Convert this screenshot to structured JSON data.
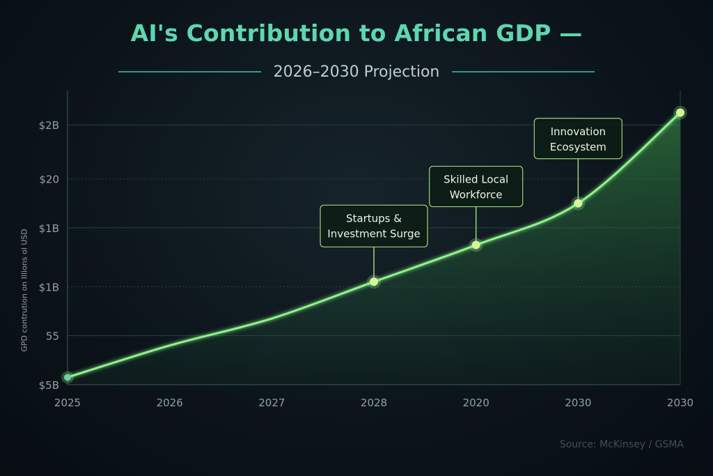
{
  "header": {
    "title": "AI's Contribution to African GDP —",
    "subtitle": "2026–2030 Projection"
  },
  "source": "Source: McKinsey / GSMA",
  "chart_data": {
    "type": "area",
    "title": "AI's Contribution to African GDP —",
    "subtitle": "2026–2030 Projection",
    "ylabel": "GPD contrution on Illions ol USD",
    "x_tick_labels": [
      "2025",
      "2026",
      "2027",
      "2028",
      "2020",
      "2030",
      "2030"
    ],
    "y_tick_labels": [
      "$5B",
      "55",
      "$1B",
      "$1B",
      "$20",
      "$2B"
    ],
    "x": [
      0,
      1,
      2,
      3,
      4,
      5,
      6
    ],
    "series": [
      {
        "values": [
          0.15,
          0.8,
          1.35,
          2.1,
          2.85,
          3.7,
          5.55
        ],
        "markers": [
          {
            "x": 0,
            "y": 0.15
          },
          {
            "x": 3,
            "y": 2.1
          },
          {
            "x": 4,
            "y": 2.85
          },
          {
            "x": 5,
            "y": 3.7
          },
          {
            "x": 6,
            "y": 5.55
          }
        ]
      }
    ],
    "annotations": [
      {
        "text": "Startups &\nInvestment Surge",
        "x": 3,
        "y": 2.1
      },
      {
        "text": "Skilled Local\nWorkforce",
        "x": 4,
        "y": 2.85
      },
      {
        "text": "Innovation\nEcosystem",
        "x": 5,
        "y": 3.7
      }
    ],
    "ylim": [
      0,
      6
    ],
    "grid": true,
    "legend": "none",
    "colors": {
      "line": "#8ef58a",
      "fill": "#3fa04e",
      "marker": "#d4f59a",
      "annotation_border": "#9fd27a",
      "annotation_text": "#e8f6e4",
      "grid": "#27414a",
      "tick": "#8ea2a6"
    }
  }
}
